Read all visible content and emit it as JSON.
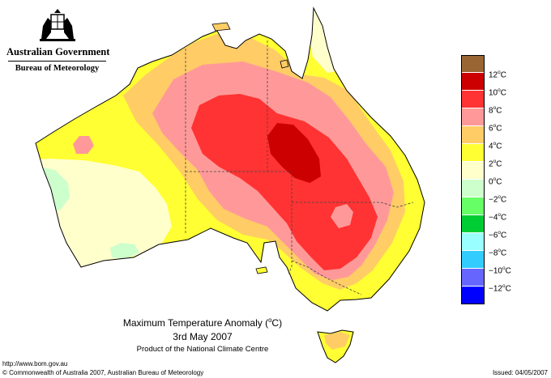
{
  "header": {
    "government": "Australian Government",
    "bureau": "Bureau of Meteorology"
  },
  "caption": {
    "title_main": "Maximum Temperature Anomaly (",
    "title_unit_sup": "o",
    "title_unit": "C)",
    "date": "3rd May 2007",
    "credit": "Product of the National Climate Centre"
  },
  "footer": {
    "url": "http://www.bom.gov.au",
    "copyright": "© Commonwealth of Australia 2007, Australian Bureau of Meteorology",
    "issued": "Issued: 04/05/2007"
  },
  "legend": {
    "degree_symbol": "o",
    "unit": "C",
    "labels": [
      "12",
      "10",
      "8",
      "6",
      "4",
      "2",
      "0",
      "-2",
      "-4",
      "-6",
      "-8",
      "-10",
      "-12"
    ],
    "colors": [
      "#996633",
      "#cc0000",
      "#ff3333",
      "#ff9999",
      "#ffcc66",
      "#ffff33",
      "#ffffcc",
      "#ccffcc",
      "#66ff66",
      "#00cc33",
      "#99ffff",
      "#33ccff",
      "#6666ff",
      "#0000ff"
    ]
  },
  "map_colors": {
    "ocean": "#ffffff",
    "coastline": "#000000",
    "state_border": "#444444"
  }
}
